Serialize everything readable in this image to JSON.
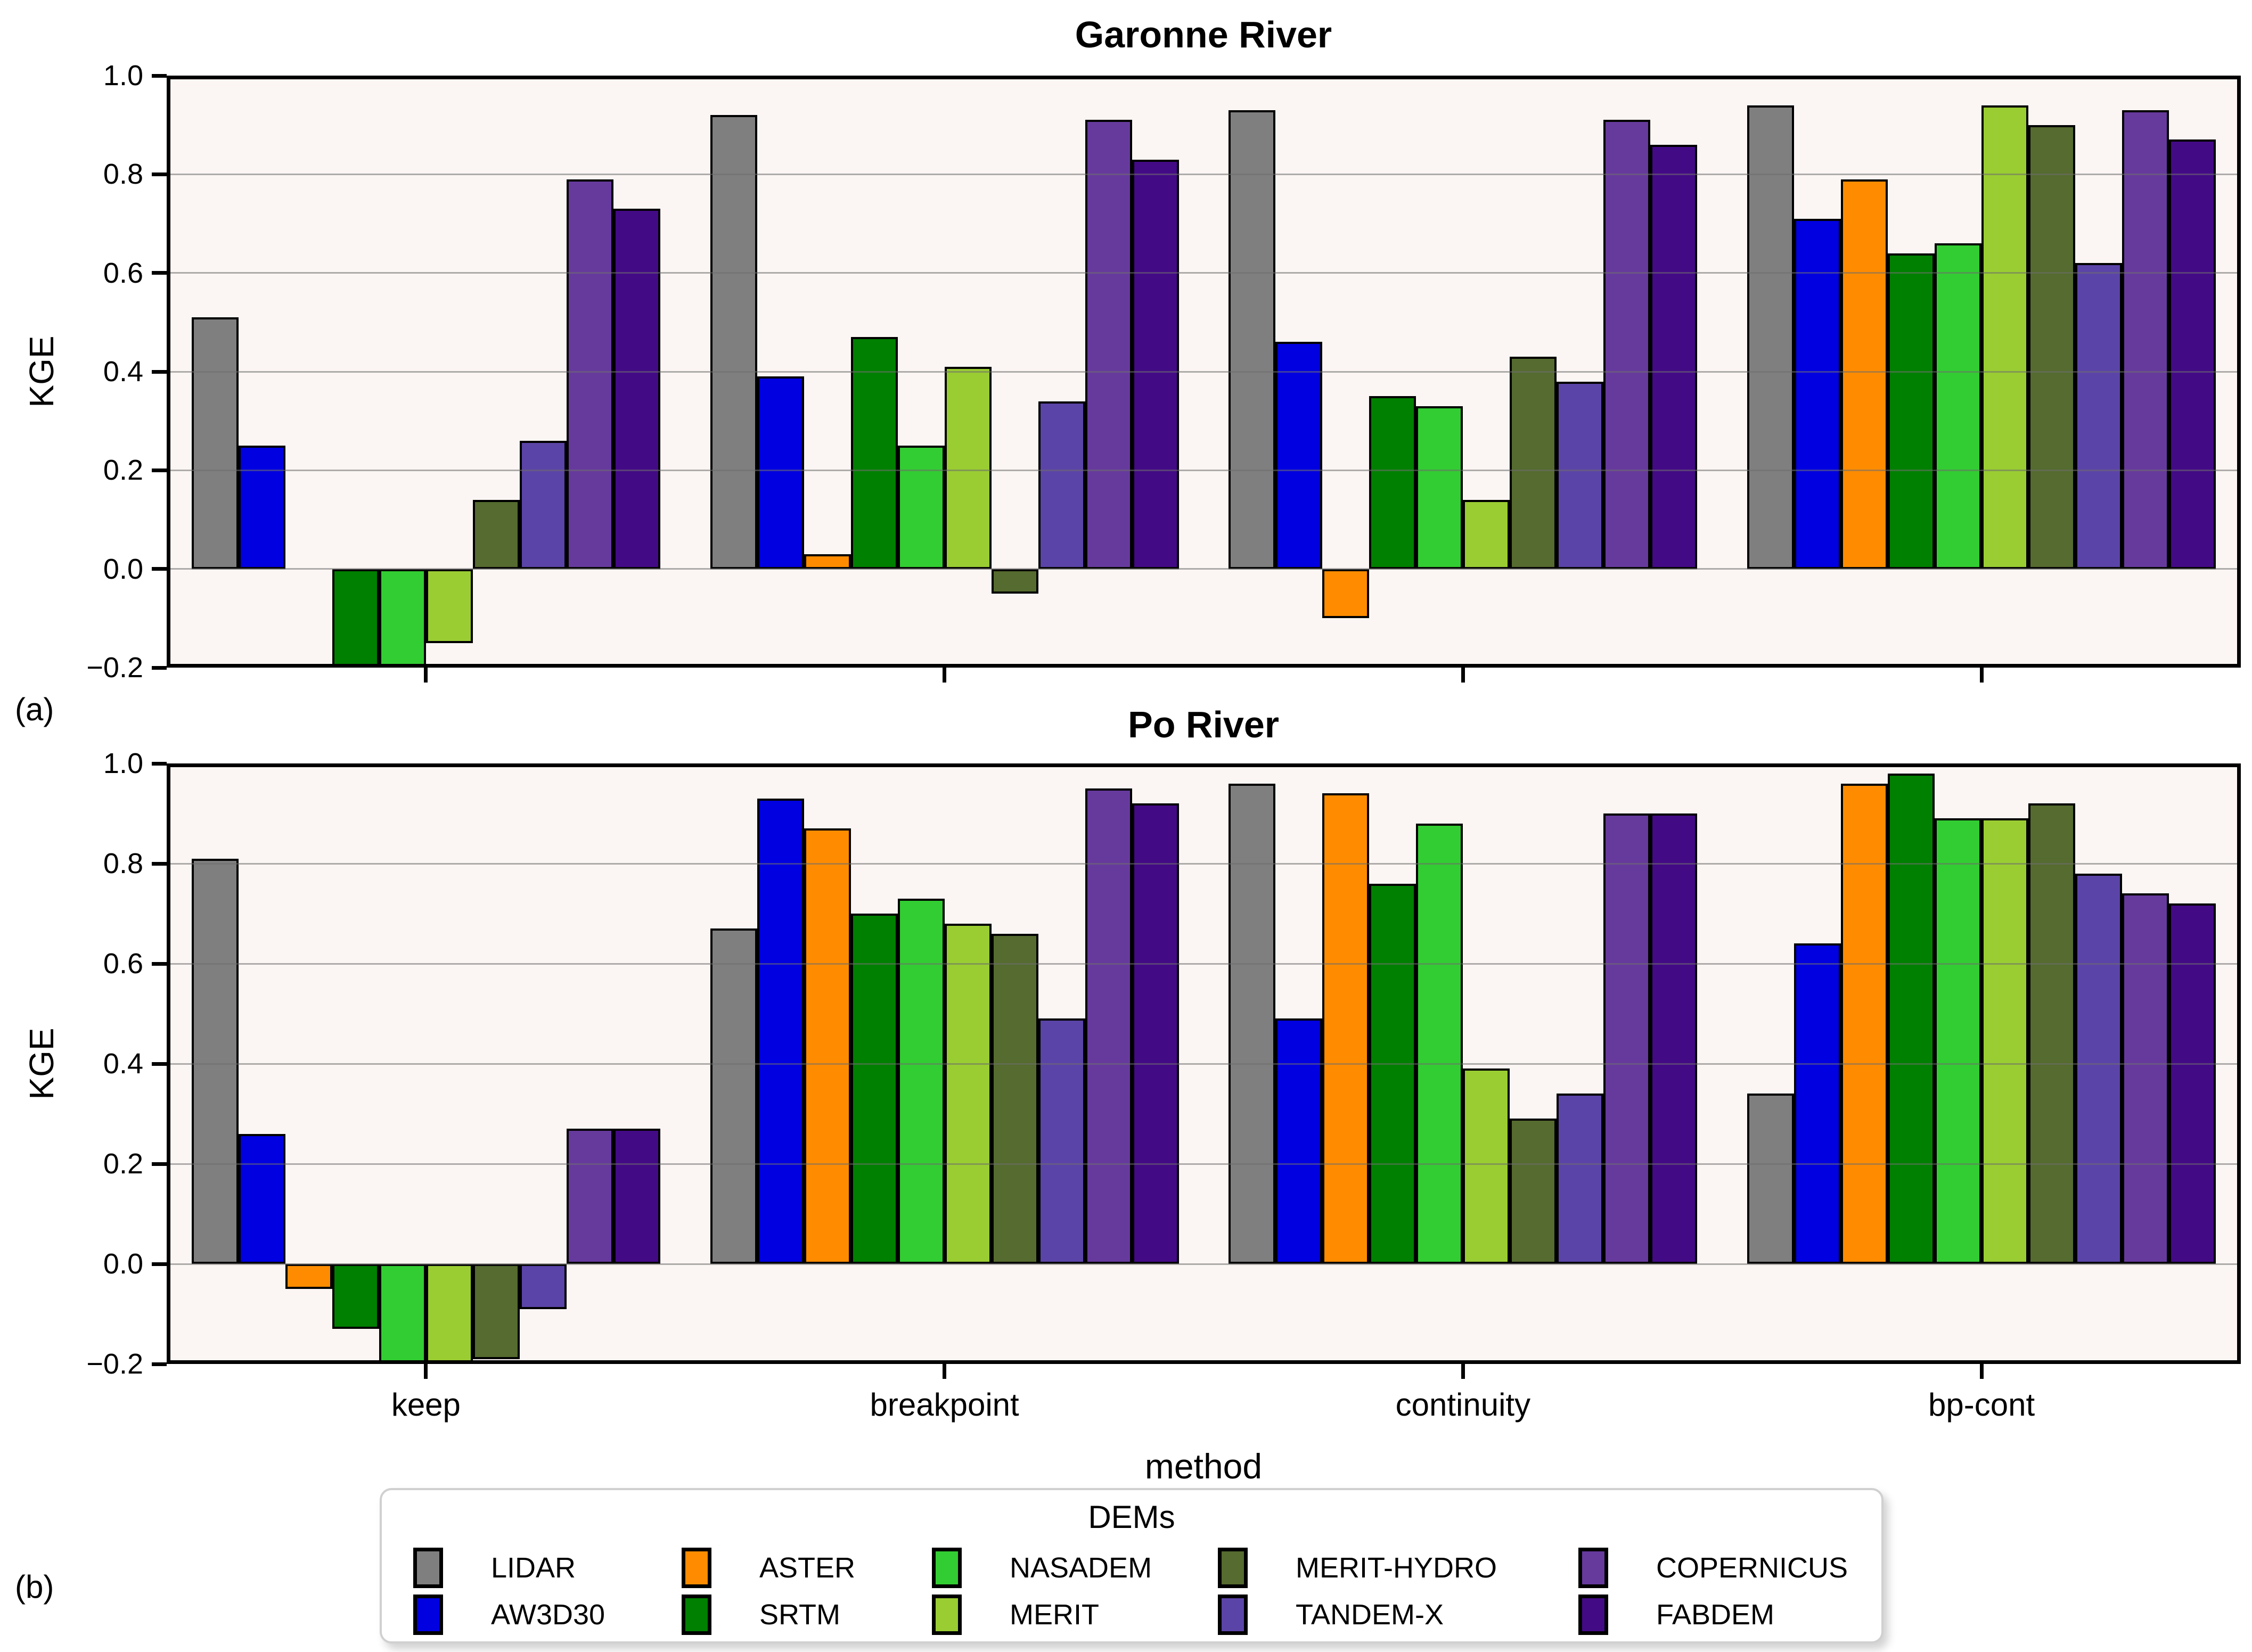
{
  "figure": {
    "panel_a_label": "(a)",
    "panel_b_label": "(b)",
    "ylabel": "KGE",
    "xlabel": "method",
    "background_color": "#ffffff",
    "plot_background_color": "#fbf6f4",
    "grid_color": "#6e6e6e",
    "yticklabels": [
      "1.0",
      "0.8",
      "0.6",
      "0.4",
      "0.2",
      "0.0",
      "−0.2"
    ]
  },
  "legend": {
    "title": "DEMs",
    "entries": [
      {
        "label": "LIDAR",
        "color": "#7f7f7f"
      },
      {
        "label": "AW3D30",
        "color": "#0000e0"
      },
      {
        "label": "ASTER",
        "color": "#ff8c00"
      },
      {
        "label": "SRTM",
        "color": "#008000"
      },
      {
        "label": "NASADEM",
        "color": "#32cd32"
      },
      {
        "label": "MERIT",
        "color": "#9acd32"
      },
      {
        "label": "MERIT-HYDRO",
        "color": "#556b2f"
      },
      {
        "label": "TANDEM-X",
        "color": "#5b44a8"
      },
      {
        "label": "COPERNICUS",
        "color": "#663a9d"
      },
      {
        "label": "FABDEM",
        "color": "#430a86"
      }
    ]
  },
  "chart_data": [
    {
      "type": "bar",
      "title": "Garonne River",
      "ylabel": "KGE",
      "ylim": [
        -0.2,
        1.0
      ],
      "grid": true,
      "categories": [
        "keep",
        "breakpoint",
        "continuity",
        "bp-cont"
      ],
      "series": [
        {
          "name": "LIDAR",
          "values": [
            0.51,
            0.92,
            0.93,
            0.94
          ]
        },
        {
          "name": "AW3D30",
          "values": [
            0.25,
            0.39,
            0.46,
            0.71
          ]
        },
        {
          "name": "ASTER",
          "values": [
            0.0,
            0.03,
            -0.1,
            0.79
          ]
        },
        {
          "name": "SRTM",
          "values": [
            -0.2,
            0.47,
            0.35,
            0.64
          ]
        },
        {
          "name": "NASADEM",
          "values": [
            -0.2,
            0.25,
            0.33,
            0.66
          ]
        },
        {
          "name": "MERIT",
          "values": [
            -0.15,
            0.41,
            0.14,
            0.94
          ]
        },
        {
          "name": "MERIT-HYDRO",
          "values": [
            0.14,
            -0.05,
            0.43,
            0.9
          ]
        },
        {
          "name": "TANDEM-X",
          "values": [
            0.26,
            0.34,
            0.38,
            0.62
          ]
        },
        {
          "name": "COPERNICUS",
          "values": [
            0.79,
            0.91,
            0.91,
            0.93
          ]
        },
        {
          "name": "FABDEM",
          "values": [
            0.73,
            0.83,
            0.86,
            0.87
          ]
        }
      ]
    },
    {
      "type": "bar",
      "title": "Po River",
      "ylabel": "KGE",
      "ylim": [
        -0.2,
        1.0
      ],
      "grid": true,
      "categories": [
        "keep",
        "breakpoint",
        "continuity",
        "bp-cont"
      ],
      "series": [
        {
          "name": "LIDAR",
          "values": [
            0.81,
            0.67,
            0.96,
            0.34
          ]
        },
        {
          "name": "AW3D30",
          "values": [
            0.26,
            0.93,
            0.49,
            0.64
          ]
        },
        {
          "name": "ASTER",
          "values": [
            -0.05,
            0.87,
            0.94,
            0.96
          ]
        },
        {
          "name": "SRTM",
          "values": [
            -0.13,
            0.7,
            0.76,
            0.98
          ]
        },
        {
          "name": "NASADEM",
          "values": [
            -0.2,
            0.73,
            0.88,
            0.89
          ]
        },
        {
          "name": "MERIT",
          "values": [
            -0.2,
            0.68,
            0.39,
            0.89
          ]
        },
        {
          "name": "MERIT-HYDRO",
          "values": [
            -0.19,
            0.66,
            0.29,
            0.92
          ]
        },
        {
          "name": "TANDEM-X",
          "values": [
            -0.09,
            0.49,
            0.34,
            0.78
          ]
        },
        {
          "name": "COPERNICUS",
          "values": [
            0.27,
            0.95,
            0.9,
            0.74
          ]
        },
        {
          "name": "FABDEM",
          "values": [
            0.27,
            0.92,
            0.9,
            0.72
          ]
        }
      ]
    }
  ]
}
